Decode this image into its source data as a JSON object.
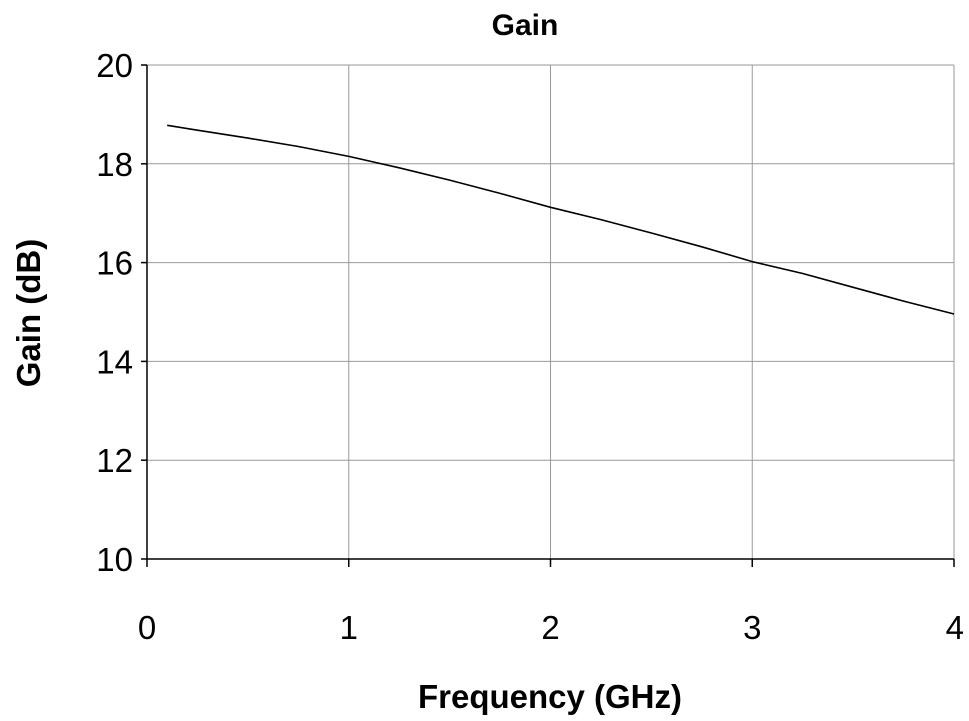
{
  "chart_data": {
    "type": "line",
    "title": "Gain",
    "xlabel": "Frequency (GHz)",
    "ylabel": "Gain (dB)",
    "xlim": [
      0,
      4
    ],
    "ylim": [
      10,
      20
    ],
    "xticks": [
      0,
      1,
      2,
      3,
      4
    ],
    "yticks": [
      10,
      12,
      14,
      16,
      18,
      20
    ],
    "xtick_labels": [
      "0",
      "1",
      "2",
      "3",
      "4"
    ],
    "ytick_labels": [
      "10",
      "12",
      "14",
      "16",
      "18",
      "20"
    ],
    "grid": true,
    "legend": "none",
    "colors": {
      "line": "#000000",
      "grid": "#9a9a9a",
      "background": "#ffffff"
    },
    "series": [
      {
        "x": [
          0.1,
          0.25,
          0.5,
          0.75,
          1.0,
          1.25,
          1.5,
          1.75,
          2.0,
          2.25,
          2.5,
          2.75,
          3.0,
          3.25,
          3.5,
          3.75,
          4.0
        ],
        "y": [
          18.78,
          18.68,
          18.52,
          18.35,
          18.15,
          17.92,
          17.67,
          17.4,
          17.12,
          16.87,
          16.6,
          16.32,
          16.02,
          15.78,
          15.5,
          15.22,
          14.96
        ]
      }
    ]
  }
}
